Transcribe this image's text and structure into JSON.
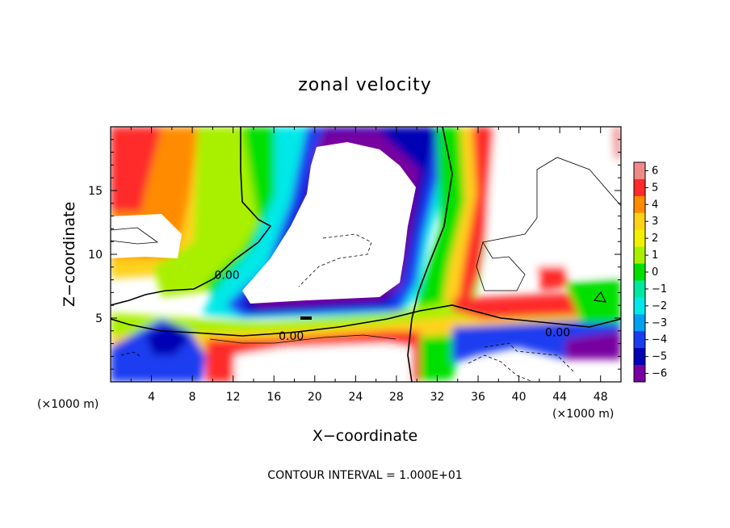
{
  "chart_data": {
    "type": "heatmap",
    "title": "zonal velocity",
    "xlabel": "X−coordinate",
    "ylabel": "Z−coordinate",
    "x_unit_left": "(×1000 m)",
    "x_unit_right": "(×1000 m)",
    "footer": "CONTOUR INTERVAL = 1.000E+01",
    "xlim": [
      0,
      50
    ],
    "ylim": [
      0,
      20
    ],
    "x_ticks": [
      4,
      8,
      12,
      16,
      20,
      24,
      28,
      32,
      36,
      40,
      44,
      48
    ],
    "x_tick_labels": [
      "4",
      "8",
      "12",
      "16",
      "20",
      "24",
      "28",
      "32",
      "36",
      "40",
      "44",
      "48"
    ],
    "y_ticks": [
      5,
      10,
      15
    ],
    "y_tick_labels": [
      "5",
      "10",
      "15"
    ],
    "colorbar": {
      "ticks": [
        6,
        5,
        4,
        3,
        2,
        1,
        0,
        -1,
        -2,
        -3,
        -4,
        -5,
        -6
      ],
      "tick_labels": [
        "6",
        "5",
        "4",
        "3",
        "2",
        "1",
        "0",
        "−1",
        "−2",
        "−3",
        "−4",
        "−5",
        "−6"
      ],
      "colors": [
        "#f08a8a",
        "#ff2a2a",
        "#ff8c00",
        "#ffd21a",
        "#f0f000",
        "#a8f000",
        "#00e000",
        "#00e8a0",
        "#00e8e8",
        "#00a0f0",
        "#1a3cf0",
        "#0000b4",
        "#7800a0"
      ]
    },
    "contour_labels": [
      {
        "text": "0.00",
        "x": 11.4,
        "z": 8.4
      },
      {
        "text": "0.00",
        "x": 17.7,
        "z": 3.6
      },
      {
        "text": "0.00",
        "x": 43.8,
        "z": 3.9
      }
    ]
  }
}
